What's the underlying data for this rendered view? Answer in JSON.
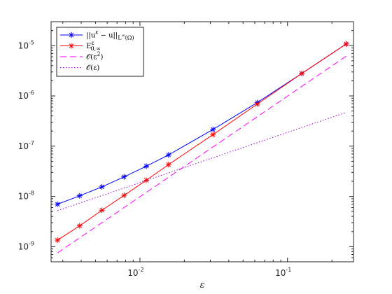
{
  "chart_data": {
    "type": "line",
    "title": "",
    "xlabel": "ε",
    "ylabel": "",
    "xscale": "log",
    "yscale": "log",
    "xlim": [
      0.0025,
      0.28
    ],
    "ylim": [
      5e-10,
      3e-05
    ],
    "grid": false,
    "legend_position": "top-left",
    "x_ticks": [
      {
        "value": 0.01,
        "base": "10",
        "exp": "-2"
      },
      {
        "value": 0.1,
        "base": "10",
        "exp": "-1"
      }
    ],
    "y_ticks": [
      {
        "value": 1e-09,
        "base": "10",
        "exp": "-9"
      },
      {
        "value": 1e-08,
        "base": "10",
        "exp": "-8"
      },
      {
        "value": 1e-07,
        "base": "10",
        "exp": "-7"
      },
      {
        "value": 1e-06,
        "base": "10",
        "exp": "-6"
      },
      {
        "value": 1e-05,
        "base": "10",
        "exp": "-5"
      }
    ],
    "series": [
      {
        "name": "||u^ε − u||_{L^∞(Ω)}",
        "legend": {
          "main": "||u",
          "sup": "ε",
          "mid": " − u||",
          "sub": "L",
          "subsup": "∞",
          "subend": "(Ω)"
        },
        "color": "#0000ff",
        "line_style": "solid",
        "marker": "asterisk",
        "x": [
          0.002762,
          0.003906,
          0.005524,
          0.007813,
          0.011049,
          0.015625,
          0.03125,
          0.0625,
          0.125,
          0.25
        ],
        "y": [
          7e-09,
          1.03e-08,
          1.55e-08,
          2.45e-08,
          4e-08,
          6.7e-08,
          2.15e-07,
          7.4e-07,
          2.8e-06,
          1.08e-05
        ]
      },
      {
        "name": "E^ε_{0,∞}",
        "legend": {
          "main": "E",
          "sup": "ε",
          "sub": "0,∞"
        },
        "color": "#ff0000",
        "line_style": "solid",
        "marker": "asterisk",
        "x": [
          0.002762,
          0.003906,
          0.005524,
          0.007813,
          0.011049,
          0.015625,
          0.03125,
          0.0625,
          0.125,
          0.25
        ],
        "y": [
          1.35e-09,
          2.6e-09,
          5.3e-09,
          1.05e-08,
          2.1e-08,
          4.3e-08,
          1.7e-07,
          6.9e-07,
          2.8e-06,
          1.08e-05
        ]
      },
      {
        "name": "O(ε²)",
        "legend": {
          "main": "𝒪(ε",
          "sup": "2",
          "end": ")"
        },
        "color": "#ff00ff",
        "line_style": "dashed",
        "marker": "none",
        "x": [
          0.002762,
          0.25
        ],
        "y": [
          7.5e-10,
          6.2e-06
        ]
      },
      {
        "name": "O(ε)",
        "legend": {
          "main": "𝒪(ε)"
        },
        "color": "#9900cc",
        "line_style": "dotted",
        "marker": "none",
        "x": [
          0.002762,
          0.25
        ],
        "y": [
          5.2e-09,
          4.7e-07
        ]
      }
    ]
  }
}
